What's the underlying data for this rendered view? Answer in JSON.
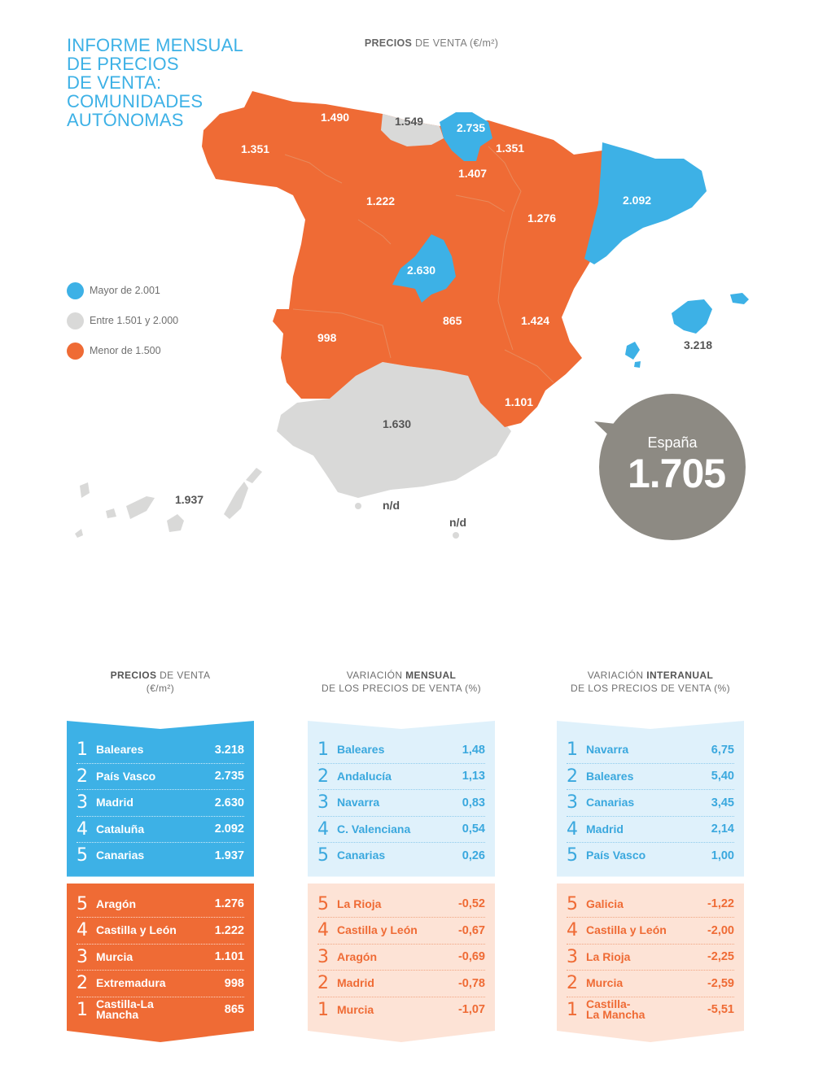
{
  "header": {
    "title": "INFORME MENSUAL\nDE PRECIOS\nDE VENTA:\nCOMUNIDADES\nAUTÓNOMAS",
    "map_heading_bold": "PRECIOS",
    "map_heading_rest": " DE VENTA (€/m²)"
  },
  "legend": [
    {
      "label": "Mayor de 2.001",
      "color": "#3db1e6"
    },
    {
      "label": "Entre 1.501 y 2.000",
      "color": "#d9d9d8"
    },
    {
      "label": "Menor de 1.500",
      "color": "#ef6b35"
    }
  ],
  "colors": {
    "blue": "#3db1e6",
    "grey": "#d9d9d8",
    "orange": "#ef6b35",
    "bubble": "#8d8a83"
  },
  "map_labels": {
    "galicia": "1.351",
    "asturias": "1.490",
    "cantabria": "1.549",
    "pais_vasco": "2.735",
    "navarra": "1.351",
    "la_rioja": "1.407",
    "castilla_leon": "1.222",
    "aragon": "1.276",
    "cataluna": "2.092",
    "madrid": "2.630",
    "extremadura": "998",
    "castilla_la_mancha": "865",
    "valencia": "1.424",
    "murcia": "1.101",
    "andalucia": "1.630",
    "baleares": "3.218",
    "canarias": "1.937",
    "ceuta": "n/d",
    "melilla": "n/d"
  },
  "spain_bubble": {
    "title": "España",
    "value": "1.705"
  },
  "tables": [
    {
      "head_bold_first": true,
      "head_bold": "PRECIOS",
      "head_rest": " DE VENTA",
      "head_line2": "(€/m²)",
      "top": [
        {
          "rank": "1",
          "name": "Baleares",
          "value": "3.218"
        },
        {
          "rank": "2",
          "name": "País Vasco",
          "value": "2.735"
        },
        {
          "rank": "3",
          "name": "Madrid",
          "value": "2.630"
        },
        {
          "rank": "4",
          "name": "Cataluña",
          "value": "2.092"
        },
        {
          "rank": "5",
          "name": "Canarias",
          "value": "1.937"
        }
      ],
      "bottom": [
        {
          "rank": "5",
          "name": "Aragón",
          "value": "1.276"
        },
        {
          "rank": "4",
          "name": "Castilla y León",
          "value": "1.222"
        },
        {
          "rank": "3",
          "name": "Murcia",
          "value": "1.101"
        },
        {
          "rank": "2",
          "name": "Extremadura",
          "value": "998"
        },
        {
          "rank": "1",
          "name": "Castilla-La Mancha",
          "value": "865"
        }
      ]
    },
    {
      "head_bold_first": false,
      "head_pre": "VARIACIÓN ",
      "head_bold": "MENSUAL",
      "head_line2": "DE LOS PRECIOS DE VENTA (%)",
      "top": [
        {
          "rank": "1",
          "name": "Baleares",
          "value": "1,48"
        },
        {
          "rank": "2",
          "name": "Andalucía",
          "value": "1,13"
        },
        {
          "rank": "3",
          "name": "Navarra",
          "value": "0,83"
        },
        {
          "rank": "4",
          "name": "C. Valenciana",
          "value": "0,54"
        },
        {
          "rank": "5",
          "name": "Canarias",
          "value": "0,26"
        }
      ],
      "bottom": [
        {
          "rank": "5",
          "name": "La Rioja",
          "value": "-0,52"
        },
        {
          "rank": "4",
          "name": "Castilla y León",
          "value": "-0,67"
        },
        {
          "rank": "3",
          "name": "Aragón",
          "value": "-0,69"
        },
        {
          "rank": "2",
          "name": "Madrid",
          "value": "-0,78"
        },
        {
          "rank": "1",
          "name": "Murcia",
          "value": "-1,07"
        }
      ]
    },
    {
      "head_bold_first": false,
      "head_pre": "VARIACIÓN ",
      "head_bold": "INTERANUAL",
      "head_line2": "DE LOS PRECIOS DE VENTA (%)",
      "top": [
        {
          "rank": "1",
          "name": "Navarra",
          "value": "6,75"
        },
        {
          "rank": "2",
          "name": "Baleares",
          "value": "5,40"
        },
        {
          "rank": "3",
          "name": "Canarias",
          "value": "3,45"
        },
        {
          "rank": "4",
          "name": "Madrid",
          "value": "2,14"
        },
        {
          "rank": "5",
          "name": "País Vasco",
          "value": "1,00"
        }
      ],
      "bottom": [
        {
          "rank": "5",
          "name": "Galicia",
          "value": "-1,22"
        },
        {
          "rank": "4",
          "name": "Castilla y León",
          "value": "-2,00"
        },
        {
          "rank": "3",
          "name": "La Rioja",
          "value": "-2,25"
        },
        {
          "rank": "2",
          "name": "Murcia",
          "value": "-2,59"
        },
        {
          "rank": "1",
          "name": "Castilla-\nLa Mancha",
          "value": "-5,51"
        }
      ]
    }
  ]
}
